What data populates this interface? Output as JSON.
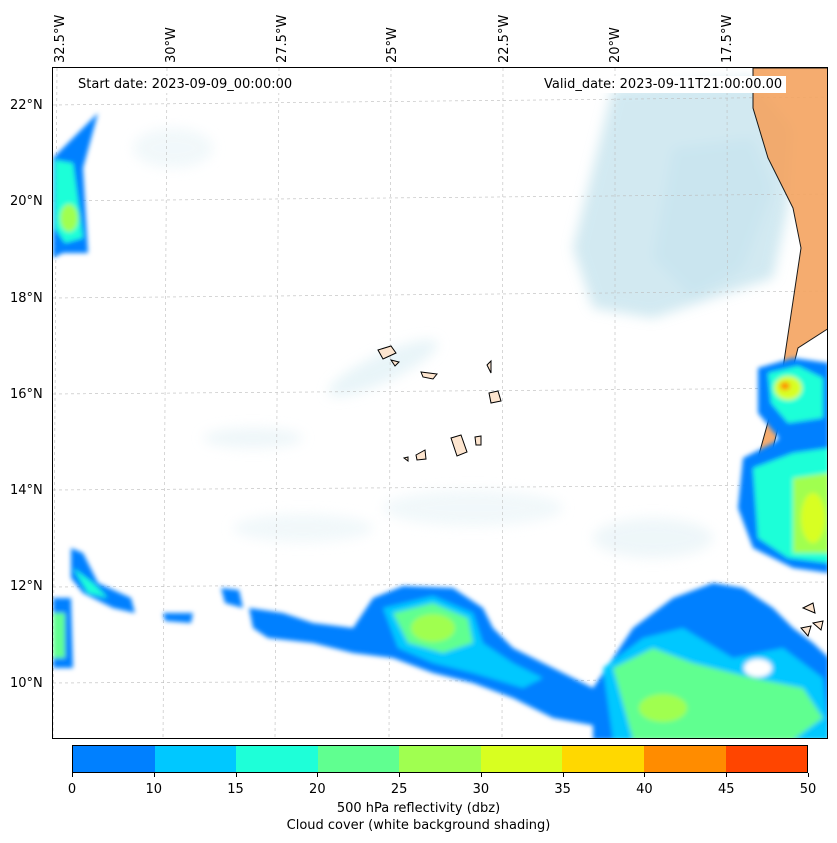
{
  "map": {
    "start_date": "Start date: 2023-09-09_00:00:00",
    "valid_date": "Valid_date: 2023-09-11T21:00:00.00",
    "lon_labels": [
      "32.5°W",
      "30°W",
      "27.5°W",
      "25°W",
      "22.5°W",
      "20°W",
      "17.5°W"
    ],
    "lat_labels": [
      "22°N",
      "20°N",
      "18°N",
      "16°N",
      "14°N",
      "12°N",
      "10°N"
    ],
    "land_color": "#f4a460",
    "cloud_color": "#add8e6"
  },
  "colorbar": {
    "ticks": [
      "0",
      "10",
      "15",
      "20",
      "25",
      "30",
      "35",
      "40",
      "45",
      "50"
    ],
    "colors": [
      "#0080ff",
      "#00c8ff",
      "#1effd8",
      "#60ff90",
      "#a0ff50",
      "#d8ff20",
      "#ffd800",
      "#ff8c00",
      "#ff4500"
    ],
    "label_line1": "500 hPa reflectivity (dbz)",
    "label_line2": "Cloud cover (white background shading)"
  }
}
